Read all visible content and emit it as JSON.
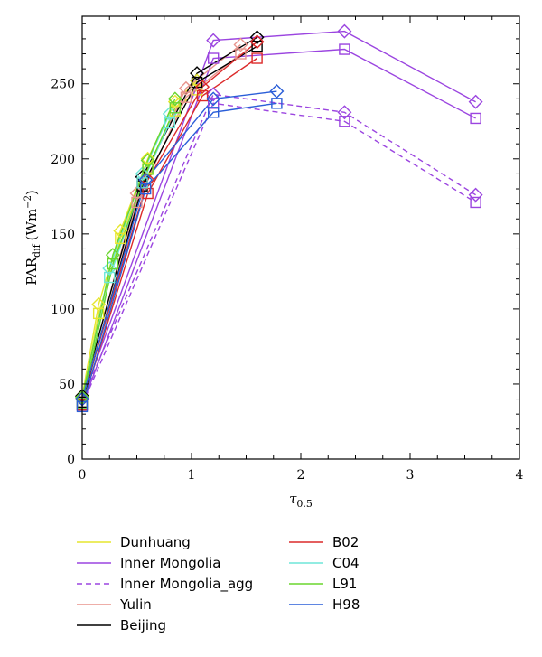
{
  "chart_data": {
    "type": "line",
    "xlabel": "τ",
    "xlabel_sub": "0.5",
    "ylabel": "PAR",
    "ylabel_sub": "dif",
    "ylabel_unit": "(Wm",
    "ylabel_unit_sup": "−2",
    "ylabel_unit_close": ")",
    "xlim": [
      0,
      4
    ],
    "ylim": [
      0,
      295
    ],
    "xticks": [
      0,
      1,
      2,
      3,
      4
    ],
    "yticks": [
      0,
      50,
      100,
      150,
      200,
      250
    ],
    "grid": false,
    "legend_position": "bottom",
    "legend_columns": [
      [
        "Dunhuang",
        "Inner Mongolia",
        "Inner Mongolia_agg",
        "Yulin",
        "Beijing"
      ],
      [
        "B02",
        "C04",
        "L91",
        "H98"
      ]
    ],
    "series": [
      {
        "name": "Dunhuang",
        "color": "#e6e62e",
        "dash": "solid",
        "lines": [
          {
            "marker": "diamond",
            "x": [
              0,
              0.15,
              0.35,
              0.6,
              0.85,
              1.05
            ],
            "y": [
              42,
              103,
              152,
              200,
              238,
              252
            ]
          },
          {
            "marker": "square",
            "x": [
              0,
              0.15,
              0.35,
              0.6,
              0.85,
              1.05
            ],
            "y": [
              38,
              97,
              147,
              194,
              232,
              246
            ]
          }
        ]
      },
      {
        "name": "Inner Mongolia",
        "color": "#9b45e0",
        "dash": "solid",
        "lines": [
          {
            "marker": "diamond",
            "x": [
              0,
              1.2,
              2.4,
              3.6
            ],
            "y": [
              40,
              279,
              285,
              238
            ]
          },
          {
            "marker": "square",
            "x": [
              0,
              1.2,
              2.4,
              3.6
            ],
            "y": [
              36,
              267,
              273,
              227
            ]
          }
        ]
      },
      {
        "name": "Inner Mongolia_agg",
        "color": "#9b45e0",
        "dash": "dashed",
        "lines": [
          {
            "marker": "diamond",
            "x": [
              0,
              1.2,
              2.4,
              3.6
            ],
            "y": [
              40,
              243,
              231,
              176
            ]
          },
          {
            "marker": "square",
            "x": [
              0,
              1.2,
              2.4,
              3.6
            ],
            "y": [
              36,
              237,
              225,
              171
            ]
          }
        ]
      },
      {
        "name": "Yulin",
        "color": "#e8948c",
        "dash": "solid",
        "lines": [
          {
            "marker": "diamond",
            "x": [
              0,
              0.5,
              0.95,
              1.45
            ],
            "y": [
              41,
              177,
              247,
              276
            ]
          },
          {
            "marker": "square",
            "x": [
              0,
              0.5,
              0.95,
              1.45
            ],
            "y": [
              37,
              171,
              241,
              270
            ]
          }
        ]
      },
      {
        "name": "Beijing",
        "color": "#000000",
        "dash": "solid",
        "lines": [
          {
            "marker": "diamond",
            "x": [
              0,
              0.55,
              1.05,
              1.6
            ],
            "y": [
              42,
              188,
              257,
              281
            ]
          },
          {
            "marker": "square",
            "x": [
              0,
              0.55,
              1.05,
              1.6
            ],
            "y": [
              38,
              182,
              251,
              275
            ]
          }
        ]
      },
      {
        "name": "B02",
        "color": "#dc2a2a",
        "dash": "solid",
        "lines": [
          {
            "marker": "diamond",
            "x": [
              0,
              0.6,
              1.1,
              1.6
            ],
            "y": [
              40,
              186,
              248,
              278
            ]
          },
          {
            "marker": "square",
            "x": [
              0,
              0.6,
              1.1,
              1.6
            ],
            "y": [
              36,
              177,
              242,
              267
            ]
          }
        ]
      },
      {
        "name": "C04",
        "color": "#6ee6d8",
        "dash": "solid",
        "lines": [
          {
            "marker": "diamond",
            "x": [
              0,
              0.25,
              0.55,
              0.8
            ],
            "y": [
              41,
              127,
              190,
              230
            ]
          },
          {
            "marker": "square",
            "x": [
              0,
              0.25,
              0.55,
              0.8
            ],
            "y": [
              37,
              121,
              184,
              224
            ]
          }
        ]
      },
      {
        "name": "L91",
        "color": "#6ad62e",
        "dash": "solid",
        "lines": [
          {
            "marker": "diamond",
            "x": [
              0,
              0.28,
              0.6,
              0.85
            ],
            "y": [
              41,
              136,
              199,
              240
            ]
          },
          {
            "marker": "square",
            "x": [
              0,
              0.28,
              0.6,
              0.85
            ],
            "y": [
              37,
              130,
              193,
              234
            ]
          }
        ]
      },
      {
        "name": "H98",
        "color": "#2a5ed8",
        "dash": "solid",
        "lines": [
          {
            "marker": "diamond",
            "x": [
              0,
              0.58,
              1.2,
              1.78
            ],
            "y": [
              40,
              186,
              240,
              245
            ]
          },
          {
            "marker": "square",
            "x": [
              0,
              0.58,
              1.2,
              1.78
            ],
            "y": [
              35,
              180,
              231,
              237
            ]
          }
        ]
      }
    ]
  }
}
